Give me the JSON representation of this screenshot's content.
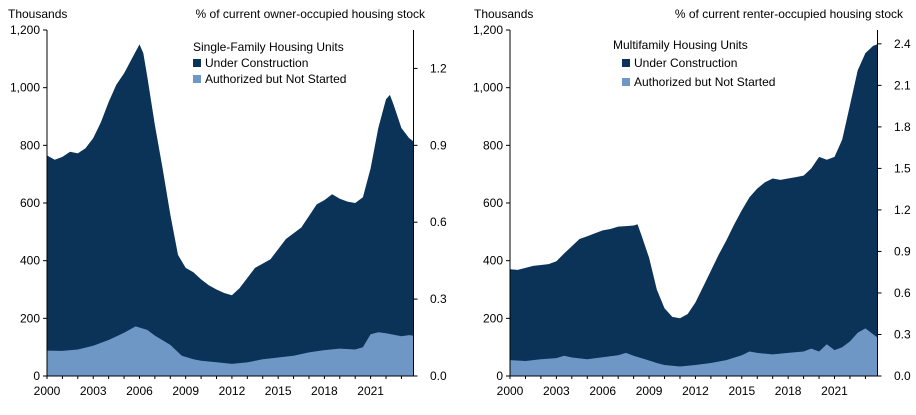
{
  "chart_data": [
    {
      "type": "area",
      "stacked": false,
      "title": "Single-Family Housing Units",
      "left_axis_label": "Thousands",
      "right_axis_label": "% of current owner-occupied housing stock",
      "ylim": [
        0,
        1200
      ],
      "yticks": [
        0,
        200,
        400,
        600,
        800,
        1000,
        1200
      ],
      "ytick_labels": [
        "0",
        "200",
        "400",
        "600",
        "800",
        "1,000",
        "1,200"
      ],
      "y2lim": [
        0,
        1.35
      ],
      "y2ticks": [
        0.0,
        0.3,
        0.6,
        0.9,
        1.2
      ],
      "y2tick_labels": [
        "0.0",
        "0.3",
        "0.6",
        "0.9",
        "1.2"
      ],
      "xlim": [
        2000,
        2023.75
      ],
      "xticks": [
        2000,
        2003,
        2006,
        2009,
        2012,
        2015,
        2018,
        2021
      ],
      "xtick_labels": [
        "2000",
        "2003",
        "2006",
        "2009",
        "2012",
        "2015",
        "2018",
        "2021"
      ],
      "legend_position": "top-right",
      "series": [
        {
          "name": "Under Construction",
          "color": "#0b3358",
          "points": [
            [
              2000,
              765
            ],
            [
              2000.5,
              750
            ],
            [
              2001,
              760
            ],
            [
              2001.5,
              778
            ],
            [
              2002,
              772
            ],
            [
              2002.5,
              790
            ],
            [
              2003,
              825
            ],
            [
              2003.5,
              880
            ],
            [
              2004,
              950
            ],
            [
              2004.5,
              1010
            ],
            [
              2005,
              1050
            ],
            [
              2005.5,
              1100
            ],
            [
              2006,
              1150
            ],
            [
              2006.25,
              1120
            ],
            [
              2006.5,
              1040
            ],
            [
              2007,
              870
            ],
            [
              2007.5,
              720
            ],
            [
              2008,
              560
            ],
            [
              2008.5,
              420
            ],
            [
              2009,
              375
            ],
            [
              2009.5,
              360
            ],
            [
              2010,
              335
            ],
            [
              2010.5,
              315
            ],
            [
              2011,
              300
            ],
            [
              2011.5,
              288
            ],
            [
              2012,
              280
            ],
            [
              2012.5,
              305
            ],
            [
              2013,
              340
            ],
            [
              2013.5,
              375
            ],
            [
              2014,
              390
            ],
            [
              2014.5,
              405
            ],
            [
              2015,
              440
            ],
            [
              2015.5,
              475
            ],
            [
              2016,
              495
            ],
            [
              2016.5,
              515
            ],
            [
              2017,
              555
            ],
            [
              2017.5,
              595
            ],
            [
              2018,
              610
            ],
            [
              2018.5,
              630
            ],
            [
              2019,
              615
            ],
            [
              2019.5,
              605
            ],
            [
              2020,
              600
            ],
            [
              2020.5,
              620
            ],
            [
              2021,
              720
            ],
            [
              2021.5,
              860
            ],
            [
              2022,
              960
            ],
            [
              2022.25,
              975
            ],
            [
              2022.5,
              940
            ],
            [
              2023,
              860
            ],
            [
              2023.5,
              825
            ],
            [
              2023.75,
              815
            ]
          ]
        },
        {
          "name": "Authorized but Not Started",
          "color": "#6f97c6",
          "points": [
            [
              2000,
              88
            ],
            [
              2001,
              87
            ],
            [
              2002,
              92
            ],
            [
              2003,
              105
            ],
            [
              2004,
              125
            ],
            [
              2005,
              150
            ],
            [
              2005.75,
              172
            ],
            [
              2006.5,
              160
            ],
            [
              2007,
              140
            ],
            [
              2008,
              108
            ],
            [
              2008.75,
              70
            ],
            [
              2009.5,
              58
            ],
            [
              2010,
              53
            ],
            [
              2011,
              48
            ],
            [
              2012,
              42
            ],
            [
              2013,
              47
            ],
            [
              2014,
              58
            ],
            [
              2015,
              64
            ],
            [
              2016,
              70
            ],
            [
              2017,
              82
            ],
            [
              2018,
              90
            ],
            [
              2019,
              95
            ],
            [
              2020,
              92
            ],
            [
              2020.5,
              100
            ],
            [
              2021,
              145
            ],
            [
              2021.5,
              152
            ],
            [
              2022,
              148
            ],
            [
              2022.5,
              143
            ],
            [
              2023,
              138
            ],
            [
              2023.5,
              142
            ],
            [
              2023.75,
              140
            ]
          ]
        }
      ]
    },
    {
      "type": "area",
      "stacked": false,
      "title": "Multifamily Housing Units",
      "left_axis_label": "Thousands",
      "right_axis_label": "% of current renter-occupied housing stock",
      "ylim": [
        0,
        1200
      ],
      "yticks": [
        0,
        200,
        400,
        600,
        800,
        1000,
        1200
      ],
      "ytick_labels": [
        "0",
        "200",
        "400",
        "600",
        "800",
        "1,000",
        "1,200"
      ],
      "y2lim": [
        0,
        2.5
      ],
      "y2ticks": [
        0.0,
        0.3,
        0.6,
        0.9,
        1.2,
        1.5,
        1.8,
        2.1,
        2.4
      ],
      "y2tick_labels": [
        "0.0",
        "0.3",
        "0.6",
        "0.9",
        "1.2",
        "1.5",
        "1.8",
        "2.1",
        "2.4"
      ],
      "xlim": [
        2000,
        2023.75
      ],
      "xticks": [
        2000,
        2003,
        2006,
        2009,
        2012,
        2015,
        2018,
        2021
      ],
      "xtick_labels": [
        "2000",
        "2003",
        "2006",
        "2009",
        "2012",
        "2015",
        "2018",
        "2021"
      ],
      "legend_position": "top-right",
      "series": [
        {
          "name": "Under Construction",
          "color": "#0b3358",
          "points": [
            [
              2000,
              370
            ],
            [
              2000.5,
              368
            ],
            [
              2001,
              375
            ],
            [
              2001.5,
              382
            ],
            [
              2002,
              385
            ],
            [
              2002.5,
              388
            ],
            [
              2003,
              398
            ],
            [
              2003.5,
              425
            ],
            [
              2004,
              450
            ],
            [
              2004.5,
              475
            ],
            [
              2005,
              485
            ],
            [
              2005.5,
              495
            ],
            [
              2006,
              505
            ],
            [
              2006.5,
              510
            ],
            [
              2007,
              518
            ],
            [
              2007.5,
              520
            ],
            [
              2008,
              522
            ],
            [
              2008.25,
              526
            ],
            [
              2008.5,
              490
            ],
            [
              2009,
              410
            ],
            [
              2009.5,
              300
            ],
            [
              2010,
              235
            ],
            [
              2010.5,
              205
            ],
            [
              2011,
              200
            ],
            [
              2011.5,
              215
            ],
            [
              2012,
              255
            ],
            [
              2012.5,
              310
            ],
            [
              2013,
              365
            ],
            [
              2013.5,
              420
            ],
            [
              2014,
              470
            ],
            [
              2014.5,
              525
            ],
            [
              2015,
              575
            ],
            [
              2015.5,
              620
            ],
            [
              2016,
              650
            ],
            [
              2016.5,
              672
            ],
            [
              2017,
              685
            ],
            [
              2017.5,
              680
            ],
            [
              2018,
              685
            ],
            [
              2018.5,
              690
            ],
            [
              2019,
              695
            ],
            [
              2019.5,
              720
            ],
            [
              2020,
              760
            ],
            [
              2020.5,
              750
            ],
            [
              2021,
              760
            ],
            [
              2021.5,
              820
            ],
            [
              2022,
              940
            ],
            [
              2022.5,
              1060
            ],
            [
              2023,
              1120
            ],
            [
              2023.5,
              1145
            ],
            [
              2023.75,
              1150
            ]
          ]
        },
        {
          "name": "Authorized but Not Started",
          "color": "#6f97c6",
          "points": [
            [
              2000,
              55
            ],
            [
              2001,
              52
            ],
            [
              2002,
              58
            ],
            [
              2003,
              62
            ],
            [
              2003.5,
              70
            ],
            [
              2004,
              64
            ],
            [
              2005,
              58
            ],
            [
              2006,
              65
            ],
            [
              2007,
              72
            ],
            [
              2007.5,
              80
            ],
            [
              2008,
              70
            ],
            [
              2008.75,
              58
            ],
            [
              2009.5,
              45
            ],
            [
              2010,
              38
            ],
            [
              2011,
              33
            ],
            [
              2012,
              38
            ],
            [
              2013,
              45
            ],
            [
              2014,
              55
            ],
            [
              2015,
              72
            ],
            [
              2015.5,
              85
            ],
            [
              2016,
              80
            ],
            [
              2017,
              75
            ],
            [
              2018,
              80
            ],
            [
              2019,
              85
            ],
            [
              2019.5,
              95
            ],
            [
              2020,
              85
            ],
            [
              2020.5,
              110
            ],
            [
              2021,
              90
            ],
            [
              2021.5,
              100
            ],
            [
              2022,
              120
            ],
            [
              2022.5,
              150
            ],
            [
              2023,
              165
            ],
            [
              2023.5,
              145
            ],
            [
              2023.75,
              135
            ]
          ]
        }
      ]
    }
  ]
}
